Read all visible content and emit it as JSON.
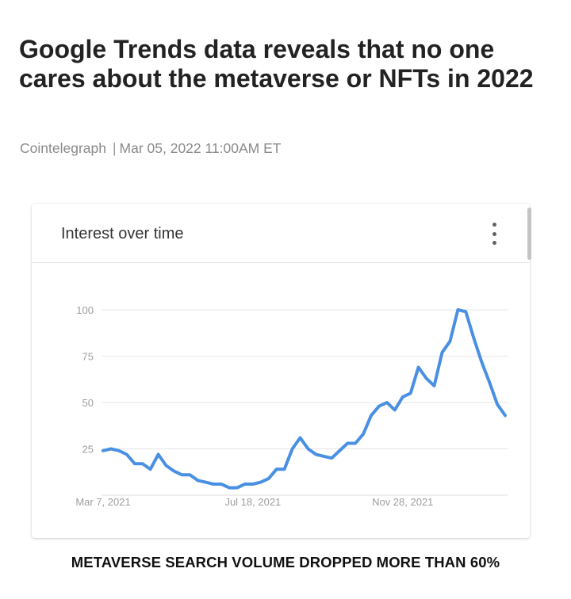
{
  "article": {
    "headline": "Google Trends data reveals that no one cares about the metaverse or NFTs in 2022",
    "source": "Cointelegraph",
    "separator": "|",
    "date": "Mar 05, 2022 11:00AM ET"
  },
  "card": {
    "title": "Interest over time",
    "menu_icon": "more-vert-icon"
  },
  "caption": "METAVERSE SEARCH VOLUME DROPPED MORE THAN 60%",
  "colors": {
    "line": "#4a90e2",
    "grid": "#e6e6e6",
    "tick": "#9e9e9e"
  },
  "chart_data": {
    "type": "line",
    "title": "Interest over time",
    "xlabel": "",
    "ylabel": "",
    "ylim": [
      0,
      100
    ],
    "yticks": [
      25,
      50,
      75,
      100
    ],
    "xticks": [
      {
        "label": "Mar 7, 2021",
        "week": 0
      },
      {
        "label": "Jul 18, 2021",
        "week": 19
      },
      {
        "label": "Nov 28, 2021",
        "week": 38
      }
    ],
    "grid": true,
    "series": [
      {
        "values": [
          24,
          25,
          24,
          22,
          17,
          17,
          14,
          22,
          16,
          13,
          11,
          11,
          8,
          7,
          6,
          6,
          4,
          4,
          6,
          6,
          7,
          9,
          14,
          14,
          25,
          31,
          25,
          22,
          21,
          20,
          24,
          28,
          28,
          33,
          43,
          48,
          50,
          46,
          53,
          55,
          69,
          63,
          59,
          77,
          83,
          100,
          99,
          85,
          72,
          61,
          49,
          43
        ]
      }
    ]
  }
}
